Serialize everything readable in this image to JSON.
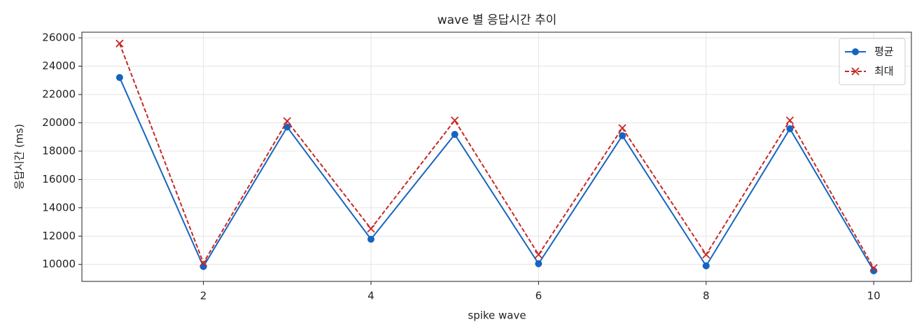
{
  "chart_data": {
    "type": "line",
    "title": "wave 별 응답시간 추이",
    "x_label": "spike wave",
    "y_label": "응답시간 (ms)",
    "x": [
      1,
      2,
      3,
      4,
      5,
      6,
      7,
      8,
      9,
      10
    ],
    "series": [
      {
        "name": "평균",
        "color": "#1565c0",
        "marker": "o",
        "dash": false,
        "values": [
          23200,
          9850,
          19700,
          11780,
          19180,
          10050,
          19090,
          9900,
          19580,
          9550
        ]
      },
      {
        "name": "최대",
        "color": "#c62828",
        "marker": "x",
        "dash": true,
        "values": [
          25600,
          10100,
          20120,
          12520,
          20170,
          10690,
          19630,
          10690,
          20170,
          9750
        ]
      }
    ],
    "xlim": [
      0.55,
      10.45
    ],
    "xticks": [
      2,
      4,
      6,
      8,
      10
    ],
    "ylim": [
      8800,
      26400
    ],
    "yticks": [
      10000,
      12000,
      14000,
      16000,
      18000,
      20000,
      22000,
      24000,
      26000
    ],
    "grid": true,
    "legend": "upper right"
  }
}
